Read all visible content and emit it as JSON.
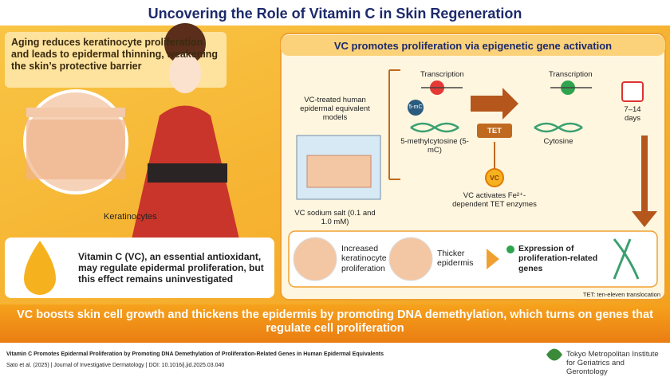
{
  "title": "Uncovering the Role of Vitamin C in Skin Regeneration",
  "left_panel": {
    "statement": "Aging reduces keratinocyte proliferation and leads to epidermal thinning, weakening the skin’s protective barrier",
    "label": "Keratinocytes",
    "hypothesis": "Vitamin C (VC), an essential antioxidant, may regulate epidermal proliferation, but this effect remains uninvestigated"
  },
  "mechanism": {
    "heading": "VC promotes proliferation via epigenetic gene activation",
    "model_label": "VC-treated human epidermal equivalent models",
    "treatment_label": "VC sodium salt (0.1 and 1.0 mM)",
    "transcription_blocked": "Transcription",
    "transcription_active": "Transcription",
    "methyl_badge": "5-mC",
    "methyl_label": "5-methylcytosine (5-mC)",
    "enzyme": "TET",
    "vc_badge": "VC",
    "vc_label": "VC activates Fe²⁺-dependent TET enzymes",
    "cytosine_label": "Cytosine",
    "duration": "7–14 days"
  },
  "results": [
    "Increased keratinocyte proliferation",
    "Thicker epidermis",
    "Expression of proliferation-related genes"
  ],
  "abbreviation": "TET: ten-eleven translocation",
  "conclusion": "VC boosts skin cell growth and thickens the epidermis by promoting DNA demethylation, which turns on genes that regulate cell proliferation",
  "footer": {
    "paper_title": "Vitamin C Promotes Epidermal Proliferation by Promoting DNA Demethylation of Proliferation-Related Genes in Human Epidermal Equivalents",
    "citation": "Sato et al. (2025) | Journal of Investigative Dermatology | DOI: 10.1016/j.jid.2025.03.040",
    "institution": "Tokyo Metropolitan Institute for Geriatrics and Gerontology"
  }
}
